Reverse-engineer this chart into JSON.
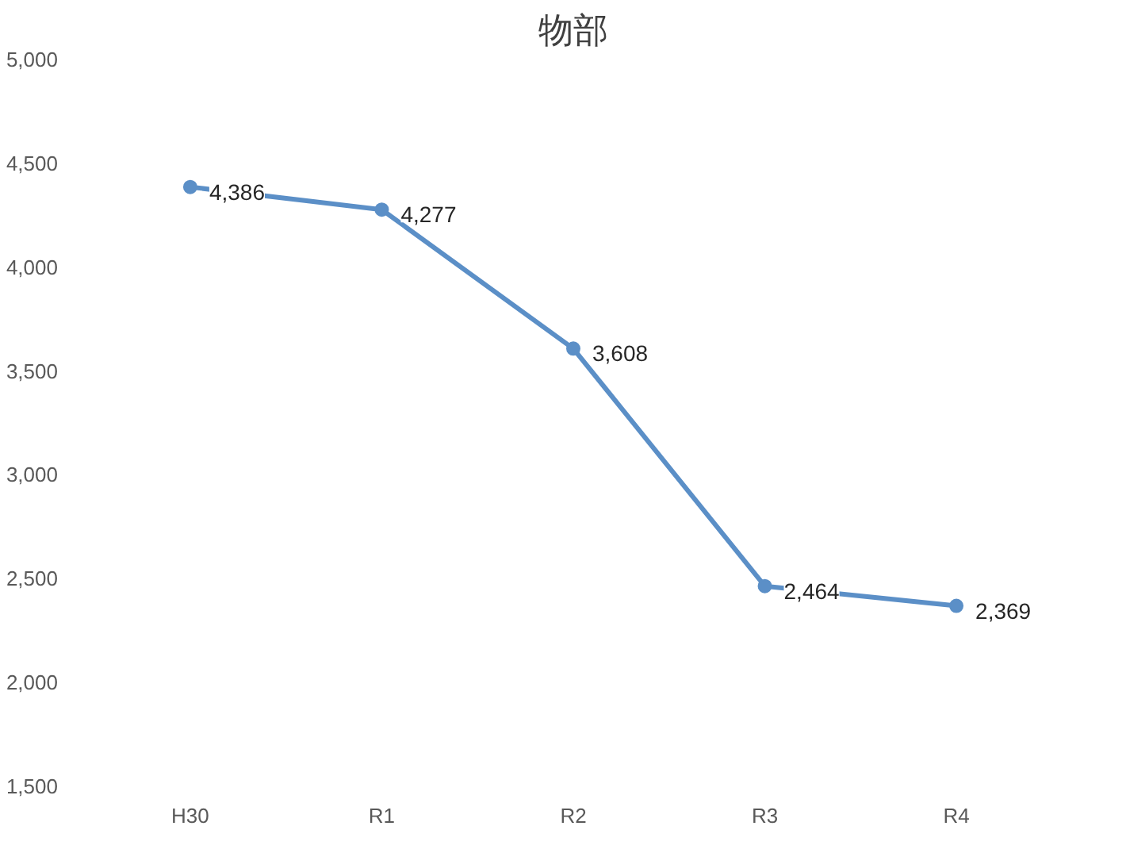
{
  "chart_data": {
    "type": "line",
    "title": "物部",
    "categories": [
      "H30",
      "R1",
      "R2",
      "R3",
      "R4"
    ],
    "series": [
      {
        "color": "#5b8fc7",
        "values": [
          4386,
          4277,
          3608,
          2464,
          2369
        ],
        "value_labels": [
          "4,386",
          "4,277",
          "3,608",
          "2,464",
          "2,369"
        ]
      }
    ],
    "ylim": [
      1500,
      5000
    ],
    "yticks": [
      {
        "value": 1500,
        "label": "1,500"
      },
      {
        "value": 2000,
        "label": "2,000"
      },
      {
        "value": 2500,
        "label": "2,500"
      },
      {
        "value": 3000,
        "label": "3,000"
      },
      {
        "value": 3500,
        "label": "3,500"
      },
      {
        "value": 4000,
        "label": "4,000"
      },
      {
        "value": 4500,
        "label": "4,500"
      },
      {
        "value": 5000,
        "label": "5,000"
      }
    ],
    "marker": "circle",
    "line_style": "solid"
  }
}
